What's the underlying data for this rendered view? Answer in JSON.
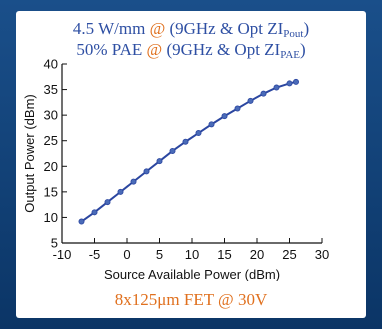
{
  "title_line1": {
    "main": "4.5 W/mm ",
    "at": "@",
    "rest": " (9GHz & Opt ZI",
    "sub": "Pout",
    "close": ")"
  },
  "title_line2": {
    "main": "50% PAE ",
    "at": "@",
    "rest": " (9GHz & Opt ZI",
    "sub": "PAE",
    "close": ")"
  },
  "caption": "8x125μm FET @ 30V",
  "colors": {
    "line": "#2b46a0",
    "marker": "#4a6bb8",
    "title": "#2e4fa3",
    "accent": "#e0701e"
  },
  "chart_data": {
    "type": "line",
    "xlabel": "Source Available Power (dBm)",
    "ylabel": "Output Power (dBm)",
    "xlim": [
      -10,
      30
    ],
    "ylim": [
      5,
      40
    ],
    "xticks": [
      -10,
      -5,
      0,
      5,
      10,
      15,
      20,
      25,
      30
    ],
    "yticks": [
      5,
      10,
      15,
      20,
      25,
      30,
      35,
      40
    ],
    "grid": false,
    "series": [
      {
        "x": [
          -7,
          -5,
          -3,
          -1,
          1,
          3,
          5,
          7,
          9,
          11,
          13,
          15,
          17,
          19,
          21,
          23,
          25,
          26
        ],
        "y": [
          9.2,
          11.0,
          13.0,
          15.0,
          17.0,
          19.0,
          21.0,
          23.0,
          24.8,
          26.5,
          28.2,
          29.8,
          31.3,
          32.8,
          34.2,
          35.4,
          36.2,
          36.5
        ]
      }
    ]
  }
}
